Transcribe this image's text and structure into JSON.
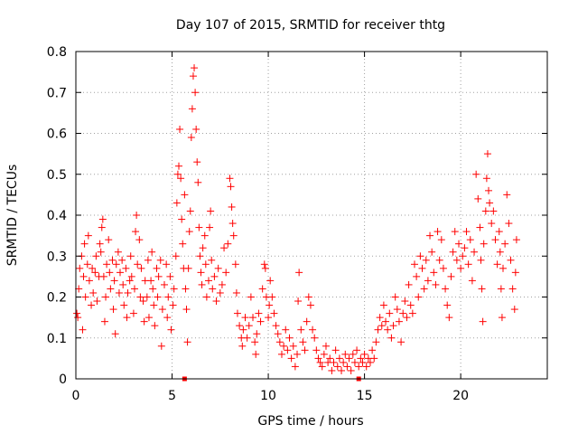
{
  "chart_data": {
    "type": "scatter",
    "title": "Day 107 of 2015, SRMTID for receiver thtg",
    "xlabel": "GPS time / hours",
    "ylabel": "SRMTID / TECUs",
    "xlim": [
      0,
      24.5
    ],
    "ylim": [
      0,
      0.8
    ],
    "xticks": [
      0,
      5,
      10,
      15,
      20
    ],
    "yticks": [
      0,
      0.1,
      0.2,
      0.3,
      0.4,
      0.5,
      0.6,
      0.7,
      0.8
    ],
    "xtick_labels": [
      "0",
      "5",
      "10",
      "15",
      "20"
    ],
    "ytick_labels": [
      "0",
      "0.1",
      "0.2",
      "0.3",
      "0.4",
      "0.5",
      "0.6",
      "0.7",
      "0.8"
    ],
    "grid": true,
    "marker": "+",
    "color": "#ff0000",
    "series": [
      {
        "name": "SRMTID",
        "points": [
          [
            0.05,
            0.16
          ],
          [
            0.1,
            0.15
          ],
          [
            0.15,
            0.22
          ],
          [
            0.2,
            0.27
          ],
          [
            0.3,
            0.3
          ],
          [
            0.35,
            0.12
          ],
          [
            0.4,
            0.25
          ],
          [
            0.45,
            0.33
          ],
          [
            0.5,
            0.2
          ],
          [
            0.6,
            0.28
          ],
          [
            0.65,
            0.35
          ],
          [
            0.7,
            0.24
          ],
          [
            0.8,
            0.18
          ],
          [
            0.85,
            0.27
          ],
          [
            0.9,
            0.21
          ],
          [
            1.0,
            0.26
          ],
          [
            1.05,
            0.3
          ],
          [
            1.1,
            0.19
          ],
          [
            1.2,
            0.25
          ],
          [
            1.25,
            0.33
          ],
          [
            1.3,
            0.31
          ],
          [
            1.35,
            0.37
          ],
          [
            1.4,
            0.39
          ],
          [
            1.45,
            0.25
          ],
          [
            1.5,
            0.14
          ],
          [
            1.55,
            0.2
          ],
          [
            1.6,
            0.28
          ],
          [
            1.7,
            0.34
          ],
          [
            1.75,
            0.26
          ],
          [
            1.8,
            0.22
          ],
          [
            1.9,
            0.29
          ],
          [
            1.95,
            0.17
          ],
          [
            2.0,
            0.24
          ],
          [
            2.05,
            0.11
          ],
          [
            2.1,
            0.28
          ],
          [
            2.2,
            0.31
          ],
          [
            2.25,
            0.21
          ],
          [
            2.3,
            0.26
          ],
          [
            2.4,
            0.29
          ],
          [
            2.45,
            0.23
          ],
          [
            2.5,
            0.18
          ],
          [
            2.6,
            0.27
          ],
          [
            2.65,
            0.15
          ],
          [
            2.7,
            0.21
          ],
          [
            2.8,
            0.24
          ],
          [
            2.85,
            0.3
          ],
          [
            2.9,
            0.25
          ],
          [
            3.0,
            0.16
          ],
          [
            3.05,
            0.22
          ],
          [
            3.1,
            0.36
          ],
          [
            3.15,
            0.4
          ],
          [
            3.2,
            0.28
          ],
          [
            3.3,
            0.34
          ],
          [
            3.35,
            0.2
          ],
          [
            3.4,
            0.27
          ],
          [
            3.5,
            0.19
          ],
          [
            3.55,
            0.14
          ],
          [
            3.6,
            0.24
          ],
          [
            3.7,
            0.2
          ],
          [
            3.75,
            0.29
          ],
          [
            3.8,
            0.15
          ],
          [
            3.9,
            0.24
          ],
          [
            3.95,
            0.31
          ],
          [
            4.0,
            0.22
          ],
          [
            4.05,
            0.18
          ],
          [
            4.1,
            0.13
          ],
          [
            4.2,
            0.27
          ],
          [
            4.25,
            0.2
          ],
          [
            4.3,
            0.25
          ],
          [
            4.4,
            0.29
          ],
          [
            4.45,
            0.08
          ],
          [
            4.5,
            0.17
          ],
          [
            4.6,
            0.23
          ],
          [
            4.7,
            0.28
          ],
          [
            4.75,
            0.15
          ],
          [
            4.8,
            0.2
          ],
          [
            4.9,
            0.25
          ],
          [
            4.95,
            0.12
          ],
          [
            5.05,
            0.18
          ],
          [
            5.1,
            0.22
          ],
          [
            5.2,
            0.3
          ],
          [
            5.25,
            0.43
          ],
          [
            5.3,
            0.5
          ],
          [
            5.35,
            0.52
          ],
          [
            5.4,
            0.61
          ],
          [
            5.45,
            0.49
          ],
          [
            5.5,
            0.39
          ],
          [
            5.55,
            0.33
          ],
          [
            5.6,
            0.27
          ],
          [
            5.65,
            0.45
          ],
          [
            5.7,
            0.22
          ],
          [
            5.75,
            0.17
          ],
          [
            5.8,
            0.09
          ],
          [
            5.85,
            0.27
          ],
          [
            5.9,
            0.36
          ],
          [
            5.95,
            0.41
          ],
          [
            6.0,
            0.59
          ],
          [
            6.05,
            0.66
          ],
          [
            6.1,
            0.74
          ],
          [
            6.15,
            0.76
          ],
          [
            6.2,
            0.7
          ],
          [
            6.25,
            0.61
          ],
          [
            6.3,
            0.53
          ],
          [
            6.35,
            0.48
          ],
          [
            6.4,
            0.37
          ],
          [
            6.45,
            0.3
          ],
          [
            6.5,
            0.26
          ],
          [
            6.55,
            0.23
          ],
          [
            6.6,
            0.32
          ],
          [
            6.7,
            0.35
          ],
          [
            6.75,
            0.28
          ],
          [
            6.8,
            0.2
          ],
          [
            6.9,
            0.24
          ],
          [
            6.95,
            0.37
          ],
          [
            7.0,
            0.41
          ],
          [
            7.05,
            0.29
          ],
          [
            7.1,
            0.22
          ],
          [
            7.2,
            0.25
          ],
          [
            7.3,
            0.19
          ],
          [
            7.4,
            0.27
          ],
          [
            7.5,
            0.21
          ],
          [
            7.6,
            0.23
          ],
          [
            7.7,
            0.32
          ],
          [
            7.8,
            0.26
          ],
          [
            7.9,
            0.33
          ],
          [
            8.0,
            0.49
          ],
          [
            8.05,
            0.47
          ],
          [
            8.1,
            0.42
          ],
          [
            8.15,
            0.38
          ],
          [
            8.2,
            0.35
          ],
          [
            8.3,
            0.28
          ],
          [
            8.35,
            0.21
          ],
          [
            8.4,
            0.16
          ],
          [
            8.5,
            0.13
          ],
          [
            8.6,
            0.1
          ],
          [
            8.65,
            0.08
          ],
          [
            8.7,
            0.12
          ],
          [
            8.8,
            0.15
          ],
          [
            8.9,
            0.1
          ],
          [
            9.0,
            0.13
          ],
          [
            9.1,
            0.2
          ],
          [
            9.2,
            0.15
          ],
          [
            9.3,
            0.09
          ],
          [
            9.35,
            0.06
          ],
          [
            9.4,
            0.11
          ],
          [
            9.5,
            0.16
          ],
          [
            9.6,
            0.14
          ],
          [
            9.7,
            0.22
          ],
          [
            9.8,
            0.28
          ],
          [
            9.85,
            0.27
          ],
          [
            9.9,
            0.2
          ],
          [
            10.0,
            0.15
          ],
          [
            10.05,
            0.18
          ],
          [
            10.1,
            0.24
          ],
          [
            10.2,
            0.2
          ],
          [
            10.3,
            0.16
          ],
          [
            10.4,
            0.13
          ],
          [
            10.5,
            0.11
          ],
          [
            10.6,
            0.09
          ],
          [
            10.7,
            0.06
          ],
          [
            10.8,
            0.08
          ],
          [
            10.9,
            0.12
          ],
          [
            11.0,
            0.07
          ],
          [
            11.1,
            0.1
          ],
          [
            11.2,
            0.05
          ],
          [
            11.3,
            0.08
          ],
          [
            11.4,
            0.03
          ],
          [
            11.5,
            0.06
          ],
          [
            11.55,
            0.19
          ],
          [
            11.6,
            0.26
          ],
          [
            11.7,
            0.12
          ],
          [
            11.8,
            0.09
          ],
          [
            11.9,
            0.07
          ],
          [
            12.0,
            0.14
          ],
          [
            12.1,
            0.2
          ],
          [
            12.2,
            0.18
          ],
          [
            12.3,
            0.12
          ],
          [
            12.4,
            0.1
          ],
          [
            12.5,
            0.07
          ],
          [
            12.6,
            0.05
          ],
          [
            12.7,
            0.04
          ],
          [
            12.8,
            0.03
          ],
          [
            12.9,
            0.06
          ],
          [
            13.0,
            0.08
          ],
          [
            13.1,
            0.04
          ],
          [
            13.2,
            0.05
          ],
          [
            13.3,
            0.02
          ],
          [
            13.4,
            0.04
          ],
          [
            13.5,
            0.07
          ],
          [
            13.6,
            0.03
          ],
          [
            13.7,
            0.05
          ],
          [
            13.8,
            0.02
          ],
          [
            13.9,
            0.04
          ],
          [
            14.0,
            0.06
          ],
          [
            14.1,
            0.03
          ],
          [
            14.2,
            0.05
          ],
          [
            14.3,
            0.02
          ],
          [
            14.4,
            0.06
          ],
          [
            14.5,
            0.04
          ],
          [
            14.6,
            0.07
          ],
          [
            14.7,
            0.03
          ],
          [
            14.8,
            0.05
          ],
          [
            14.9,
            0.04
          ],
          [
            15.0,
            0.06
          ],
          [
            15.1,
            0.03
          ],
          [
            15.2,
            0.05
          ],
          [
            15.3,
            0.04
          ],
          [
            15.4,
            0.07
          ],
          [
            15.5,
            0.05
          ],
          [
            15.6,
            0.09
          ],
          [
            15.7,
            0.12
          ],
          [
            15.8,
            0.15
          ],
          [
            15.9,
            0.13
          ],
          [
            16.0,
            0.18
          ],
          [
            16.1,
            0.14
          ],
          [
            16.2,
            0.12
          ],
          [
            16.3,
            0.16
          ],
          [
            16.4,
            0.1
          ],
          [
            16.5,
            0.13
          ],
          [
            16.6,
            0.2
          ],
          [
            16.7,
            0.17
          ],
          [
            16.8,
            0.14
          ],
          [
            16.9,
            0.09
          ],
          [
            17.0,
            0.16
          ],
          [
            17.1,
            0.19
          ],
          [
            17.2,
            0.15
          ],
          [
            17.3,
            0.23
          ],
          [
            17.4,
            0.18
          ],
          [
            17.5,
            0.16
          ],
          [
            17.6,
            0.28
          ],
          [
            17.7,
            0.25
          ],
          [
            17.8,
            0.2
          ],
          [
            17.9,
            0.3
          ],
          [
            18.0,
            0.27
          ],
          [
            18.1,
            0.22
          ],
          [
            18.2,
            0.29
          ],
          [
            18.3,
            0.24
          ],
          [
            18.4,
            0.35
          ],
          [
            18.5,
            0.31
          ],
          [
            18.6,
            0.26
          ],
          [
            18.7,
            0.23
          ],
          [
            18.8,
            0.36
          ],
          [
            18.9,
            0.29
          ],
          [
            19.0,
            0.34
          ],
          [
            19.1,
            0.27
          ],
          [
            19.2,
            0.22
          ],
          [
            19.3,
            0.18
          ],
          [
            19.4,
            0.15
          ],
          [
            19.5,
            0.25
          ],
          [
            19.6,
            0.31
          ],
          [
            19.7,
            0.36
          ],
          [
            19.8,
            0.29
          ],
          [
            19.9,
            0.33
          ],
          [
            20.0,
            0.27
          ],
          [
            20.1,
            0.3
          ],
          [
            20.2,
            0.32
          ],
          [
            20.3,
            0.36
          ],
          [
            20.4,
            0.28
          ],
          [
            20.5,
            0.34
          ],
          [
            20.6,
            0.24
          ],
          [
            20.7,
            0.31
          ],
          [
            20.8,
            0.5
          ],
          [
            20.9,
            0.44
          ],
          [
            21.0,
            0.37
          ],
          [
            21.05,
            0.29
          ],
          [
            21.1,
            0.22
          ],
          [
            21.15,
            0.14
          ],
          [
            21.2,
            0.33
          ],
          [
            21.3,
            0.41
          ],
          [
            21.35,
            0.49
          ],
          [
            21.4,
            0.55
          ],
          [
            21.45,
            0.46
          ],
          [
            21.5,
            0.43
          ],
          [
            21.6,
            0.38
          ],
          [
            21.7,
            0.41
          ],
          [
            21.8,
            0.34
          ],
          [
            21.9,
            0.28
          ],
          [
            22.0,
            0.36
          ],
          [
            22.05,
            0.31
          ],
          [
            22.1,
            0.22
          ],
          [
            22.15,
            0.15
          ],
          [
            22.2,
            0.27
          ],
          [
            22.3,
            0.33
          ],
          [
            22.4,
            0.45
          ],
          [
            22.5,
            0.38
          ],
          [
            22.6,
            0.29
          ],
          [
            22.7,
            0.22
          ],
          [
            22.8,
            0.17
          ],
          [
            22.85,
            0.26
          ],
          [
            22.9,
            0.34
          ]
        ]
      }
    ],
    "markers_at_zero": [
      {
        "x": 5.65,
        "y": 0
      },
      {
        "x": 14.7,
        "y": 0
      }
    ]
  }
}
